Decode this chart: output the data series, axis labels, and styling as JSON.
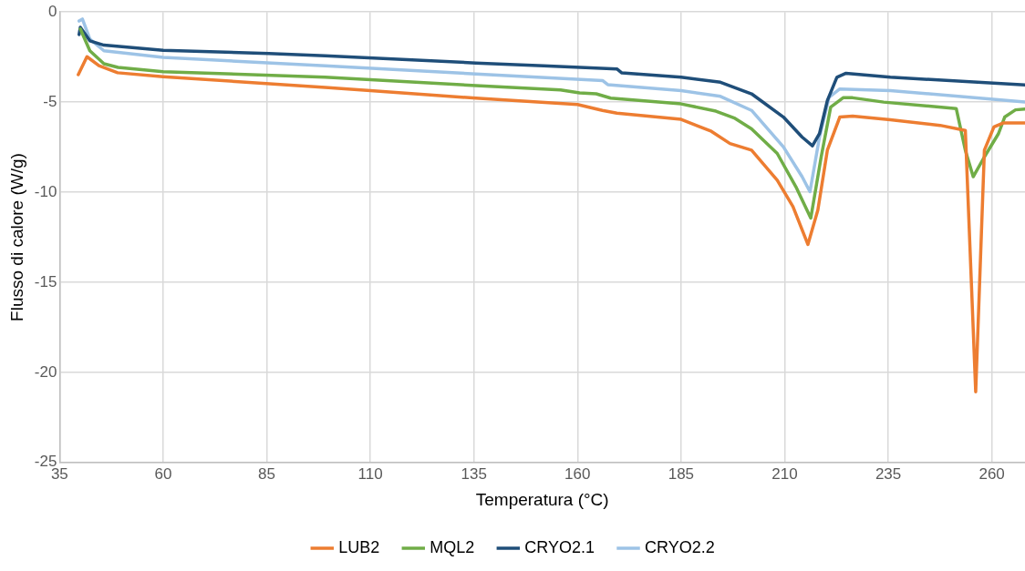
{
  "chart_data": {
    "type": "line",
    "xlabel": "Temperatura (°C)",
    "ylabel": "Flusso di calore (W/g)",
    "xlim": [
      35,
      268
    ],
    "xticks": [
      35,
      60,
      85,
      110,
      135,
      160,
      185,
      210,
      235,
      260
    ],
    "ylim": [
      -25,
      0
    ],
    "yticks": [
      -25,
      -20,
      -15,
      -10,
      -5,
      0
    ],
    "grid": true,
    "legend": "bottom",
    "marker": "none",
    "line_style": "solid",
    "series": [
      {
        "name": "LUB2",
        "color": "#ed7d31",
        "x": [
          39.5,
          41.6,
          44.5,
          49,
          60,
          99.1,
          110,
          135.5,
          160,
          166,
          169.5,
          185,
          192.3,
          196.8,
          202,
          208.2,
          212,
          215.6,
          218,
          220.3,
          223.3,
          226.4,
          235.5,
          247.5,
          253.6,
          256.1,
          258.2,
          260.5,
          262.7,
          268
        ],
        "values": [
          -3.48,
          -2.48,
          -2.98,
          -3.37,
          -3.59,
          -4.18,
          -4.36,
          -4.78,
          -5.13,
          -5.46,
          -5.61,
          -5.96,
          -6.62,
          -7.3,
          -7.67,
          -9.33,
          -10.8,
          -12.9,
          -11.0,
          -7.67,
          -5.83,
          -5.78,
          -5.98,
          -6.29,
          -6.57,
          -21.08,
          -7.67,
          -6.38,
          -6.16,
          -6.16
        ]
      },
      {
        "name": "MQL2",
        "color": "#70ad47",
        "x": [
          40,
          42.3,
          45.7,
          49.1,
          60,
          99.1,
          135.5,
          155.9,
          160.5,
          164.5,
          168,
          185,
          193.4,
          198,
          202,
          208.2,
          212.7,
          216.3,
          218.8,
          221.1,
          224.1,
          226.4,
          233.9,
          251.4,
          253.6,
          255.5,
          258.2,
          261.6,
          263.1,
          265.7,
          268
        ],
        "values": [
          -0.94,
          -2.15,
          -2.87,
          -3.07,
          -3.31,
          -3.62,
          -4.08,
          -4.32,
          -4.49,
          -4.54,
          -4.78,
          -5.1,
          -5.5,
          -5.9,
          -6.48,
          -7.85,
          -9.7,
          -11.44,
          -8.05,
          -5.28,
          -4.76,
          -4.76,
          -5.0,
          -5.36,
          -7.67,
          -9.14,
          -8.04,
          -6.75,
          -5.83,
          -5.43,
          -5.39
        ]
      },
      {
        "name": "CRYO2.1",
        "color": "#1f4e79",
        "x": [
          39.7,
          40,
          42.3,
          45.7,
          60,
          85.5,
          99.1,
          135.5,
          151.8,
          169.5,
          170.7,
          185,
          194.5,
          202,
          209.7,
          214.2,
          216.7,
          218.4,
          220.3,
          222.6,
          224.8,
          235.5,
          268
        ],
        "values": [
          -1.25,
          -0.85,
          -1.6,
          -1.84,
          -2.12,
          -2.3,
          -2.43,
          -2.83,
          -2.98,
          -3.16,
          -3.38,
          -3.62,
          -3.9,
          -4.54,
          -5.83,
          -6.94,
          -7.43,
          -6.75,
          -4.91,
          -3.62,
          -3.4,
          -3.62,
          -4.05
        ]
      },
      {
        "name": "CRYO2.2",
        "color": "#9dc3e6",
        "x": [
          39.7,
          40.5,
          42.3,
          45.7,
          60,
          99.1,
          135.5,
          166.1,
          167.3,
          185,
          194.5,
          202,
          209.7,
          214.2,
          216.1,
          218.4,
          220.7,
          223.3,
          235.5,
          268
        ],
        "values": [
          -0.5,
          -0.39,
          -1.5,
          -2.15,
          -2.52,
          -2.98,
          -3.44,
          -3.81,
          -4.03,
          -4.36,
          -4.68,
          -5.46,
          -7.49,
          -9.14,
          -9.97,
          -6.94,
          -4.73,
          -4.27,
          -4.36,
          -5.0
        ]
      }
    ]
  }
}
